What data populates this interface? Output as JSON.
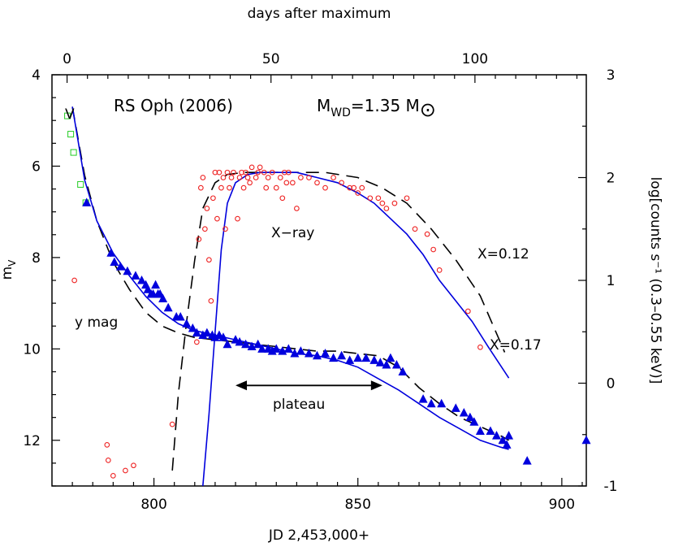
{
  "chart_data": {
    "type": "scatter",
    "title": "RS Oph (2006)",
    "subtitle": {
      "prefix": "M",
      "sub": "WD",
      "value": "=1.35 M",
      "sun": "⊙"
    },
    "bottom_axis": {
      "label": "JD 2,453,000+",
      "range": [
        775,
        906
      ],
      "ticks": [
        800,
        850,
        900
      ]
    },
    "top_axis": {
      "label": "days after maximum",
      "ticks": [
        0,
        50,
        100
      ],
      "jd_of_day0": 778.7
    },
    "left_axis": {
      "label_main": "m",
      "label_sub": "V",
      "range": [
        13,
        4
      ],
      "ticks": [
        4,
        6,
        8,
        10,
        12
      ]
    },
    "right_axis": {
      "label": "log[counts s⁻¹ (0.3–0.55 keV)]",
      "range": [
        -1,
        3
      ],
      "ticks": [
        -1,
        0,
        1,
        2,
        3
      ]
    },
    "annotations": {
      "v_label": "V",
      "xray_label": "X−ray",
      "ymag_label": "y mag",
      "x012_label": "X=0.12",
      "x017_label": "X=0.17",
      "plateau_label": "plateau",
      "plateau_range": [
        820,
        856
      ]
    },
    "colors": {
      "v": "#22cc22",
      "xray": "#ee2222",
      "ymag": "#0000dd",
      "model_a": "#000000",
      "model_b": "#0000dd"
    },
    "series": [
      {
        "name": "V",
        "marker": "open-square",
        "x": [
          778.8,
          779.6,
          780.3,
          782.0,
          783.3
        ],
        "y": [
          4.9,
          5.3,
          5.7,
          6.4,
          6.8
        ]
      },
      {
        "name": "y mag",
        "marker": "filled-triangle",
        "x": [
          783.5,
          789.5,
          790.3,
          791.8,
          793.5,
          795.5,
          797.0,
          798.0,
          798.5,
          799.3,
          799.8,
          800.4,
          801.0,
          801.5,
          802.2,
          803.5,
          805.5,
          806.5,
          808.0,
          809.5,
          810.5,
          812.0,
          813.0,
          814.3,
          815.0,
          816.0,
          817.0,
          818.0,
          820.0,
          821.0,
          822.5,
          824.0,
          825.5,
          826.5,
          828.0,
          829.0,
          830.0,
          831.5,
          833.0,
          834.5,
          836.0,
          838.0,
          840.0,
          842.0,
          844.0,
          846.0,
          848.0,
          850.0,
          852.0,
          854.0,
          855.5,
          857.0,
          858.0,
          859.5,
          861.0,
          866.0,
          868.0,
          870.5,
          874.0,
          876.0,
          877.5,
          878.5,
          880.0,
          882.5,
          884.0,
          885.5,
          886.5,
          887.0,
          891.5,
          906.0
        ],
        "y": [
          6.8,
          7.9,
          8.1,
          8.2,
          8.3,
          8.4,
          8.5,
          8.6,
          8.7,
          8.8,
          8.8,
          8.6,
          8.8,
          8.8,
          8.9,
          9.1,
          9.3,
          9.3,
          9.45,
          9.55,
          9.65,
          9.7,
          9.65,
          9.7,
          9.75,
          9.7,
          9.75,
          9.9,
          9.8,
          9.85,
          9.9,
          9.95,
          9.9,
          10.0,
          10.0,
          10.05,
          10.0,
          10.05,
          10.0,
          10.1,
          10.05,
          10.1,
          10.15,
          10.1,
          10.2,
          10.15,
          10.25,
          10.2,
          10.2,
          10.25,
          10.3,
          10.35,
          10.2,
          10.35,
          10.5,
          11.1,
          11.2,
          11.2,
          11.3,
          11.4,
          11.5,
          11.6,
          11.8,
          11.8,
          11.9,
          12.0,
          12.1,
          11.9,
          12.45,
          12.0
        ]
      },
      {
        "name": "X-ray",
        "marker": "open-circle",
        "x": [
          780.5,
          788.5,
          788.8,
          790.0,
          793.0,
          795.0,
          804.5,
          810.5,
          811.0,
          811.5,
          812.0,
          812.5,
          813.0,
          813.5,
          814.0,
          814.5,
          815.0,
          815.5,
          816.0,
          816.5,
          817.0,
          817.5,
          818.0,
          818.5,
          819.0,
          819.5,
          820.5,
          821.0,
          821.5,
          822.0,
          822.5,
          823.0,
          823.5,
          824.0,
          825.0,
          825.5,
          826.0,
          827.0,
          827.5,
          828.0,
          829.0,
          830.0,
          831.0,
          831.5,
          832.0,
          832.5,
          833.0,
          834.0,
          835.0,
          836.0,
          838.0,
          840.0,
          842.0,
          844.0,
          846.0,
          848.0,
          849.0,
          850.0,
          851.0,
          853.0,
          855.0,
          856.0,
          857.0,
          859.0,
          862.0,
          864.0,
          867.0,
          868.5,
          870.0,
          877.0,
          880.0
        ],
        "y": [
          1.0,
          -0.6,
          -0.75,
          -0.9,
          -0.85,
          -0.8,
          -0.4,
          0.4,
          1.4,
          1.9,
          2.0,
          1.5,
          1.7,
          1.2,
          0.8,
          1.8,
          2.05,
          1.6,
          2.05,
          1.9,
          2.0,
          1.5,
          2.05,
          1.9,
          2.0,
          2.05,
          1.6,
          2.0,
          2.05,
          1.9,
          2.05,
          2.0,
          1.95,
          2.1,
          2.0,
          2.05,
          2.1,
          2.05,
          1.9,
          2.0,
          2.05,
          1.9,
          2.0,
          1.8,
          2.05,
          1.95,
          2.05,
          1.95,
          1.7,
          2.0,
          2.0,
          1.95,
          1.9,
          2.0,
          1.95,
          1.9,
          1.9,
          1.85,
          1.9,
          1.8,
          1.8,
          1.75,
          1.7,
          1.75,
          1.8,
          1.5,
          1.45,
          1.3,
          1.1,
          0.7,
          0.35
        ]
      }
    ],
    "lines": [
      {
        "name": "model_a_optical",
        "style": "dashed",
        "x": [
          780,
          783,
          786,
          790,
          794,
          798,
          802,
          806,
          810,
          815,
          820,
          825,
          830,
          835,
          840,
          845,
          850,
          855,
          860,
          865,
          870,
          875,
          880,
          885,
          887
        ],
        "y": [
          4.7,
          6.2,
          7.2,
          8.1,
          8.7,
          9.2,
          9.5,
          9.65,
          9.75,
          9.8,
          9.85,
          9.9,
          9.95,
          10.0,
          10.05,
          10.05,
          10.1,
          10.15,
          10.4,
          10.85,
          11.2,
          11.5,
          11.7,
          11.9,
          12.0
        ]
      },
      {
        "name": "model_b_optical",
        "style": "solid",
        "x": [
          780,
          783,
          786,
          790,
          794,
          798,
          802,
          806,
          810,
          815,
          820,
          825,
          830,
          835,
          840,
          845,
          850,
          855,
          860,
          865,
          870,
          875,
          880,
          885,
          887
        ],
        "y": [
          4.7,
          6.3,
          7.2,
          7.9,
          8.4,
          8.85,
          9.2,
          9.45,
          9.6,
          9.7,
          9.8,
          9.9,
          10.0,
          10.1,
          10.15,
          10.25,
          10.4,
          10.65,
          10.9,
          11.2,
          11.5,
          11.75,
          12.0,
          12.15,
          12.2
        ]
      },
      {
        "name": "model_a_xray",
        "style": "dashed",
        "x": [
          804.5,
          806,
          808,
          810,
          812,
          815,
          818,
          822,
          828,
          835,
          842,
          850,
          856,
          862,
          868,
          874,
          880,
          886
        ],
        "y": [
          -0.85,
          -0.1,
          0.6,
          1.2,
          1.7,
          1.95,
          2.03,
          2.05,
          2.05,
          2.05,
          2.05,
          2.0,
          1.9,
          1.75,
          1.5,
          1.2,
          0.85,
          0.3
        ]
      },
      {
        "name": "model_b_xray",
        "style": "solid",
        "x": [
          812,
          813.5,
          815,
          816.5,
          818,
          820,
          823,
          826,
          830,
          835,
          840,
          845,
          850,
          854,
          858,
          862,
          866,
          870,
          874,
          878,
          882,
          887
        ],
        "y": [
          -1.0,
          -0.3,
          0.5,
          1.3,
          1.75,
          1.95,
          2.03,
          2.05,
          2.05,
          2.05,
          2.0,
          1.95,
          1.85,
          1.75,
          1.6,
          1.45,
          1.25,
          1.0,
          0.8,
          0.6,
          0.35,
          0.05
        ]
      }
    ]
  }
}
